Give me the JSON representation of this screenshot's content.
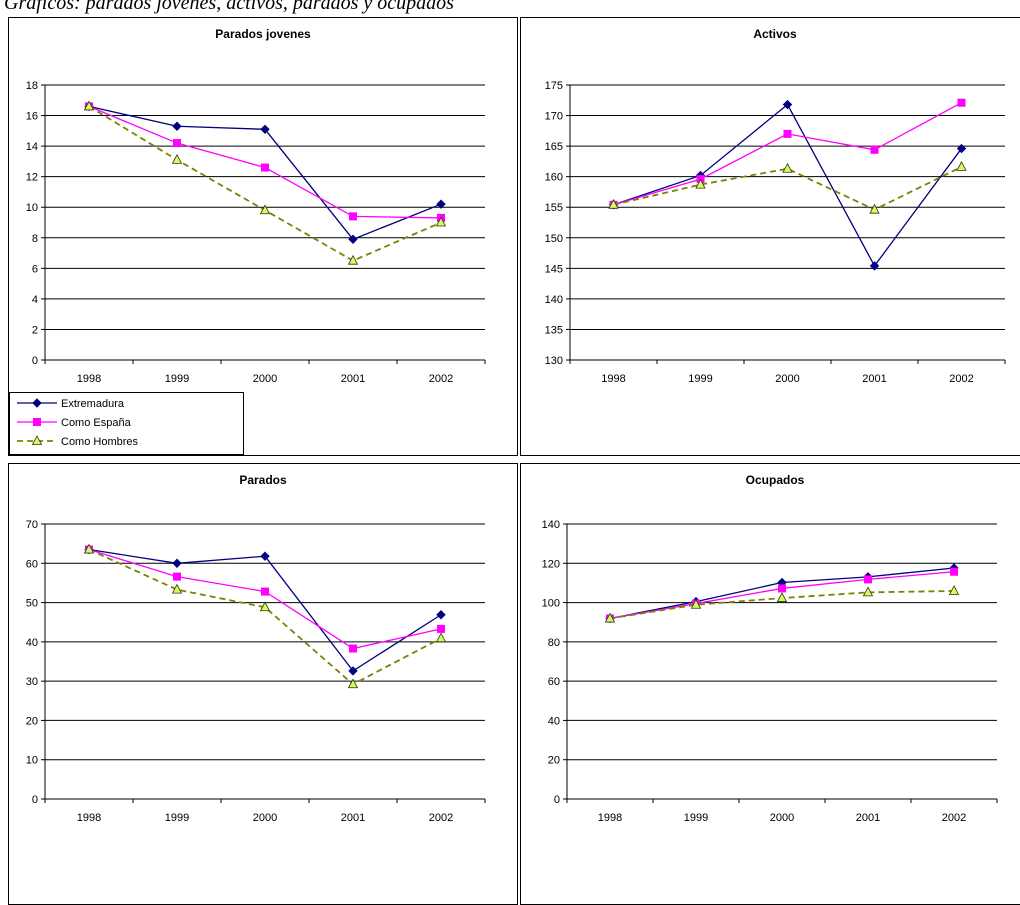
{
  "caption": "Gráficos: parados jovenes, activos, parados y ocupados",
  "legend": [
    {
      "name": "Extremadura",
      "color": "#000080",
      "marker": "diamond",
      "dash": false
    },
    {
      "name": "Como España",
      "color": "#ff00ff",
      "marker": "square",
      "dash": false
    },
    {
      "name": "Como Hombres",
      "color": "#808000",
      "marker": "triangle",
      "dash": true
    }
  ],
  "chart_data": [
    {
      "type": "line",
      "title": "Parados jovenes",
      "categories": [
        "1998",
        "1999",
        "2000",
        "2001",
        "2002"
      ],
      "ylim": [
        0,
        18
      ],
      "yticks": [
        0,
        2,
        4,
        6,
        8,
        10,
        12,
        14,
        16,
        18
      ],
      "grid": true,
      "legend_position": "bottom-left",
      "series": [
        {
          "name": "Extremadura",
          "values": [
            16.6,
            15.3,
            15.1,
            7.9,
            10.2
          ]
        },
        {
          "name": "Como España",
          "values": [
            16.6,
            14.2,
            12.6,
            9.4,
            9.3
          ]
        },
        {
          "name": "Como Hombres",
          "values": [
            16.6,
            13.1,
            9.8,
            6.5,
            9.0
          ]
        }
      ]
    },
    {
      "type": "line",
      "title": "Activos",
      "categories": [
        "1998",
        "1999",
        "2000",
        "2001",
        "2002"
      ],
      "ylim": [
        130,
        175
      ],
      "yticks": [
        130,
        135,
        140,
        145,
        150,
        155,
        160,
        165,
        170,
        175
      ],
      "grid": true,
      "series": [
        {
          "name": "Extremadura",
          "values": [
            155.4,
            160.2,
            171.8,
            145.4,
            164.6
          ]
        },
        {
          "name": "Como España",
          "values": [
            155.4,
            159.6,
            167.0,
            164.4,
            172.1
          ]
        },
        {
          "name": "Como Hombres",
          "values": [
            155.4,
            158.7,
            161.3,
            154.6,
            161.6
          ]
        }
      ]
    },
    {
      "type": "line",
      "title": "Parados",
      "categories": [
        "1998",
        "1999",
        "2000",
        "2001",
        "2002"
      ],
      "ylim": [
        0,
        70
      ],
      "yticks": [
        0,
        10,
        20,
        30,
        40,
        50,
        60,
        70
      ],
      "grid": true,
      "series": [
        {
          "name": "Extremadura",
          "values": [
            63.5,
            60.0,
            61.8,
            32.6,
            46.9
          ]
        },
        {
          "name": "Como España",
          "values": [
            63.5,
            56.6,
            52.8,
            38.3,
            43.3
          ]
        },
        {
          "name": "Como Hombres",
          "values": [
            63.5,
            53.3,
            48.8,
            29.2,
            40.9
          ]
        }
      ]
    },
    {
      "type": "line",
      "title": "Ocupados",
      "categories": [
        "1998",
        "1999",
        "2000",
        "2001",
        "2002"
      ],
      "ylim": [
        0,
        140
      ],
      "yticks": [
        0,
        20,
        40,
        60,
        80,
        100,
        120,
        140
      ],
      "grid": true,
      "series": [
        {
          "name": "Extremadura",
          "values": [
            91.9,
            100.5,
            110.2,
            113.1,
            117.6
          ]
        },
        {
          "name": "Como España",
          "values": [
            91.9,
            99.5,
            107.2,
            111.8,
            115.7
          ]
        },
        {
          "name": "Como Hombres",
          "values": [
            91.9,
            98.9,
            102.3,
            105.2,
            105.9
          ]
        }
      ]
    }
  ]
}
